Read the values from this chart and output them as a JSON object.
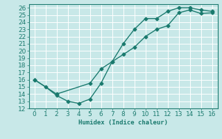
{
  "line1_x": [
    0,
    1,
    2,
    3,
    4,
    5,
    6,
    7,
    8,
    9,
    10,
    11,
    12,
    13,
    14,
    15,
    16
  ],
  "line1_y": [
    16,
    15,
    13.8,
    13,
    12.7,
    13.3,
    15.5,
    18.5,
    21,
    23,
    24.5,
    24.5,
    25.5,
    26,
    26,
    25.7,
    25.5
  ],
  "line2_x": [
    0,
    2,
    5,
    6,
    7,
    8,
    9,
    10,
    11,
    12,
    13,
    14,
    15,
    16
  ],
  "line2_y": [
    16,
    14,
    15.5,
    17.5,
    18.5,
    19.5,
    20.5,
    22,
    23,
    23.5,
    25.3,
    25.7,
    25.2,
    25.3
  ],
  "line_color": "#1a7a6e",
  "bg_color": "#c8e8e8",
  "grid_color": "#b8d8d8",
  "xlabel": "Humidex (Indice chaleur)",
  "xlim": [
    -0.5,
    16.5
  ],
  "ylim": [
    12,
    26.5
  ],
  "yticks": [
    12,
    13,
    14,
    15,
    16,
    17,
    18,
    19,
    20,
    21,
    22,
    23,
    24,
    25,
    26
  ],
  "xticks": [
    0,
    1,
    2,
    3,
    4,
    5,
    6,
    7,
    8,
    9,
    10,
    11,
    12,
    13,
    14,
    15,
    16
  ],
  "marker": "D",
  "marker_size": 2.5,
  "line_width": 1.0,
  "font_size": 6.5
}
